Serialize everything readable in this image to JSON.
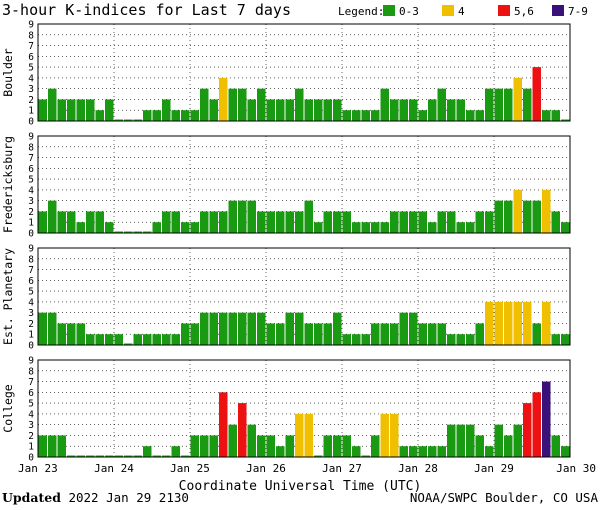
{
  "chart_data": {
    "type": "bar",
    "title": "3-hour K-indices for Last 7 days",
    "xlabel": "Coordinate Universal Time (UTC)",
    "x_ticks": [
      "Jan 23",
      "Jan 24",
      "Jan 25",
      "Jan 26",
      "Jan 27",
      "Jan 28",
      "Jan 29",
      "Jan 30"
    ],
    "y_ticks": [
      "0",
      "1",
      "2",
      "3",
      "4",
      "5",
      "6",
      "7",
      "8",
      "9"
    ],
    "ylim": [
      0,
      9
    ],
    "legend": {
      "label": "Legend:",
      "placement": "top-right",
      "entries": [
        {
          "label": "0-3",
          "color": "#1a9a12"
        },
        {
          "label": "4",
          "color": "#f0c000"
        },
        {
          "label": "5,6",
          "color": "#ee1111"
        },
        {
          "label": "7-9",
          "color": "#3a1178"
        }
      ]
    },
    "panels": [
      {
        "name": "Boulder",
        "values": [
          2,
          3,
          2,
          2,
          2,
          2,
          1,
          2,
          0,
          0,
          0,
          1,
          1,
          2,
          1,
          1,
          1,
          3,
          2,
          4,
          3,
          3,
          2,
          3,
          2,
          2,
          2,
          3,
          2,
          2,
          2,
          2,
          1,
          1,
          1,
          1,
          3,
          2,
          2,
          2,
          1,
          2,
          3,
          2,
          2,
          1,
          1,
          3,
          3,
          3,
          4,
          3,
          5,
          1,
          1,
          0
        ]
      },
      {
        "name": "Fredericksburg",
        "values": [
          2,
          3,
          2,
          2,
          1,
          2,
          2,
          1,
          0,
          0,
          0,
          0,
          1,
          2,
          2,
          1,
          1,
          2,
          2,
          2,
          3,
          3,
          3,
          2,
          2,
          2,
          2,
          2,
          3,
          1,
          2,
          2,
          2,
          1,
          1,
          1,
          1,
          2,
          2,
          2,
          2,
          1,
          2,
          2,
          1,
          1,
          2,
          2,
          3,
          3,
          4,
          3,
          3,
          4,
          2,
          1,
          0
        ]
      },
      {
        "name": "Est. Planetary",
        "values": [
          3,
          3,
          2,
          2,
          2,
          1,
          1,
          1,
          1,
          0,
          1,
          1,
          1,
          1,
          1,
          2,
          2,
          3,
          3,
          3,
          3,
          3,
          3,
          3,
          2,
          2,
          3,
          3,
          2,
          2,
          2,
          3,
          1,
          1,
          1,
          2,
          2,
          2,
          3,
          3,
          2,
          2,
          2,
          1,
          1,
          1,
          2,
          4,
          4,
          4,
          4,
          4,
          2,
          4,
          1,
          1
        ]
      },
      {
        "name": "College",
        "values": [
          2,
          2,
          2,
          0,
          0,
          0,
          0,
          0,
          0,
          0,
          0,
          1,
          0,
          0,
          1,
          0,
          2,
          2,
          2,
          6,
          3,
          5,
          3,
          2,
          2,
          1,
          2,
          4,
          4,
          0,
          2,
          2,
          2,
          1,
          0,
          2,
          4,
          4,
          1,
          1,
          1,
          1,
          1,
          3,
          3,
          3,
          2,
          1,
          3,
          2,
          3,
          5,
          6,
          7,
          2,
          1,
          0
        ]
      }
    ]
  },
  "footer": {
    "updated_label": "Updated",
    "updated_value": "2022 Jan 29 2130",
    "source": "NOAA/SWPC Boulder, CO USA"
  }
}
